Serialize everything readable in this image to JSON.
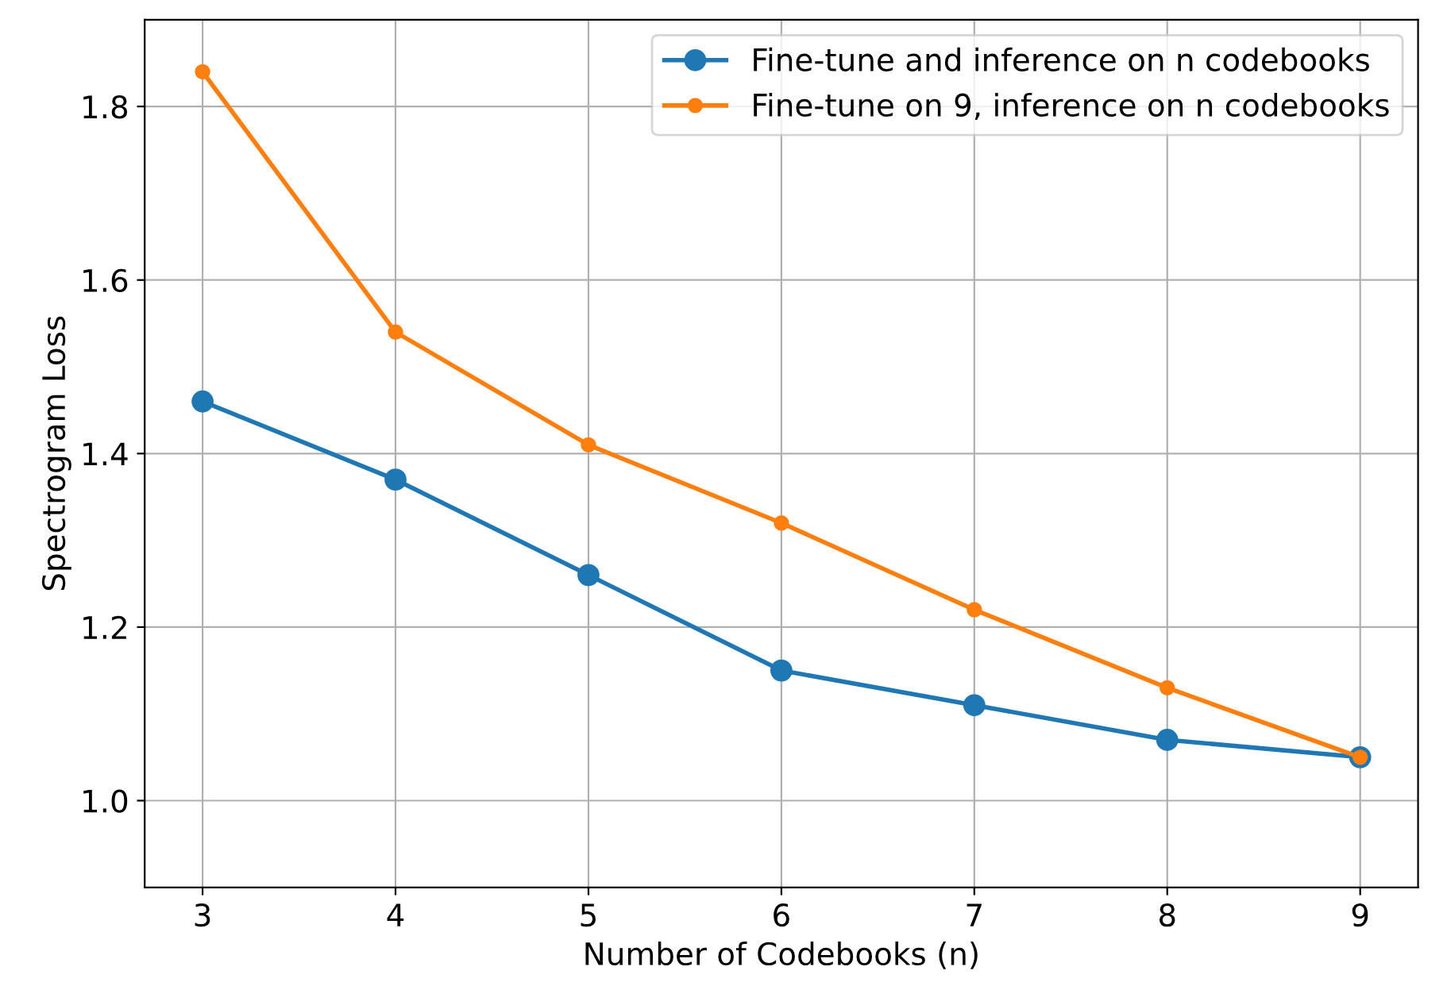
{
  "chart_data": {
    "type": "line",
    "xlabel": "Number of Codebooks (n)",
    "ylabel": "Spectrogram Loss",
    "x": [
      3,
      4,
      5,
      6,
      7,
      8,
      9
    ],
    "series": [
      {
        "name": "Fine-tune and inference on n codebooks",
        "color": "#1f77b4",
        "values": [
          1.46,
          1.37,
          1.26,
          1.15,
          1.11,
          1.07,
          1.05
        ]
      },
      {
        "name": "Fine-tune on 9, inference on n codebooks",
        "color": "#ff7f0e",
        "values": [
          1.84,
          1.54,
          1.41,
          1.32,
          1.22,
          1.13,
          1.05
        ]
      }
    ],
    "xlim": [
      2.7,
      9.3
    ],
    "ylim": [
      0.9,
      1.9
    ],
    "xticks": [
      3,
      4,
      5,
      6,
      7,
      8,
      9
    ],
    "yticks": [
      {
        "value": 1.0,
        "label": "1.0"
      },
      1.2,
      1.4,
      1.6,
      1.8
    ],
    "grid": true,
    "legend": "top right",
    "marker": "circle",
    "line_style": "solid"
  }
}
